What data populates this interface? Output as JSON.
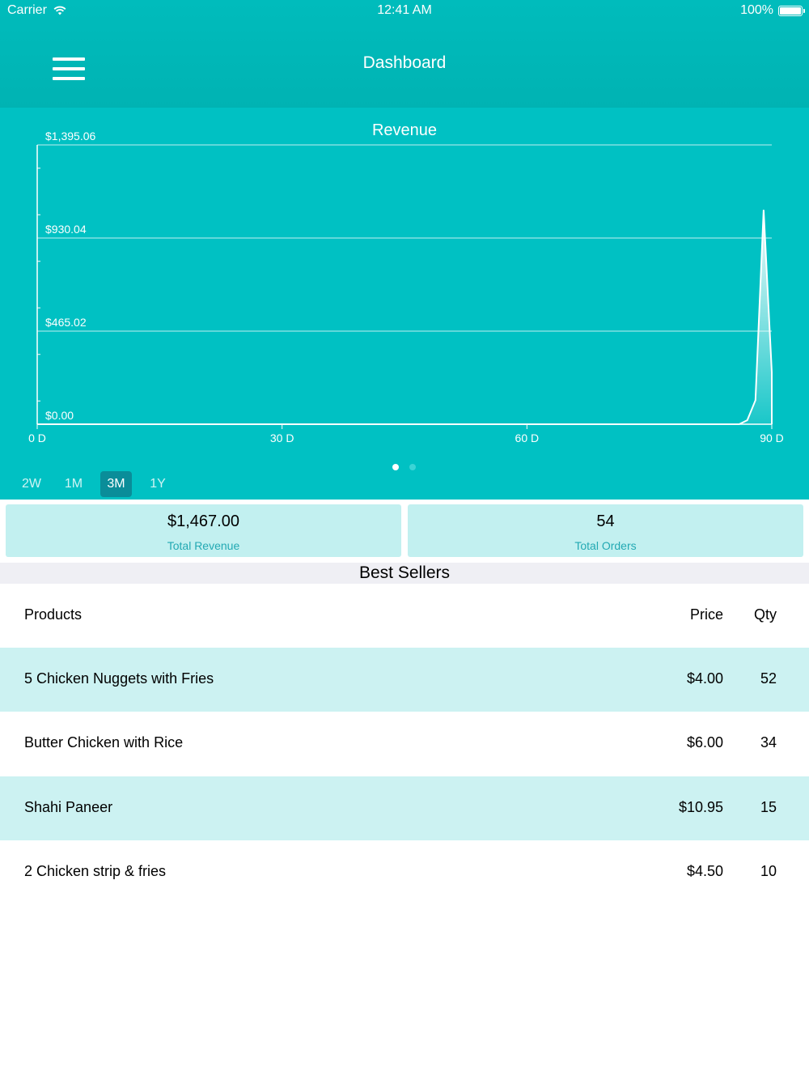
{
  "status_bar": {
    "carrier": "Carrier",
    "time": "12:41 AM",
    "battery": "100%"
  },
  "header": {
    "title": "Dashboard",
    "menu_icon": "hamburger-menu-icon"
  },
  "chart_data": {
    "type": "area",
    "title": "Revenue",
    "y_tick_labels": [
      "$1,395.06",
      "$930.04",
      "$465.02",
      "$0.00"
    ],
    "ylim": [
      0,
      1395.06
    ],
    "x_tick_labels": [
      "0 D",
      "30 D",
      "60 D",
      "90 D"
    ],
    "xlim": [
      0,
      90
    ],
    "grid": true,
    "x": [
      0,
      86,
      87,
      88,
      89,
      90,
      91
    ],
    "y": [
      0,
      0,
      20,
      120,
      1070,
      260,
      0
    ]
  },
  "pager": {
    "count": 2,
    "active": 0
  },
  "range_buttons": [
    {
      "label": "2W",
      "active": false
    },
    {
      "label": "1M",
      "active": false
    },
    {
      "label": "3M",
      "active": true
    },
    {
      "label": "1Y",
      "active": false
    }
  ],
  "summary": {
    "revenue": {
      "value": "$1,467.00",
      "label": "Total Revenue"
    },
    "orders": {
      "value": "54",
      "label": "Total Orders"
    }
  },
  "best_sellers": {
    "title": "Best Sellers",
    "columns": {
      "product": "Products",
      "price": "Price",
      "qty": "Qty"
    },
    "rows": [
      {
        "product": "5 Chicken Nuggets with Fries",
        "price": "$4.00",
        "qty": "52"
      },
      {
        "product": "Butter Chicken with Rice",
        "price": "$6.00",
        "qty": "34"
      },
      {
        "product": "Shahi Paneer",
        "price": "$10.95",
        "qty": "15"
      },
      {
        "product": "2 Chicken strip & fries",
        "price": "$4.50",
        "qty": "10"
      }
    ]
  },
  "colors": {
    "header": "#00b5b5",
    "chart_bg": "#00c1c3",
    "card_bg": "#c2f0f0",
    "active_btn": "#0a8d99",
    "row_alt": "#ccf2f2"
  }
}
